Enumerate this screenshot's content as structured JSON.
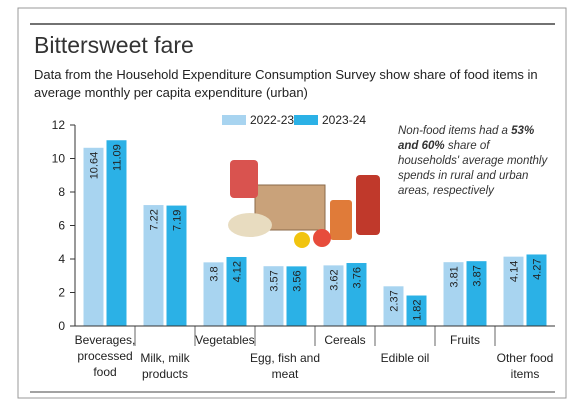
{
  "chart_data": {
    "type": "bar",
    "title": "Bittersweet fare",
    "subtitle": "Data from the Household Expenditure Consumption Survey show share of food items in average monthly per capita expenditure (urban)",
    "annotation": [
      "Non-food items had a ",
      "53% and 60%",
      " share of households' average monthly spends in rural and urban areas, respectively"
    ],
    "categories": [
      "Beverages, processed food",
      "Milk, milk products",
      "Vegetables",
      "Egg, fish and meat",
      "Cereals",
      "Edible oil",
      "Fruits",
      "Other food items"
    ],
    "series": [
      {
        "name": "2022-23",
        "color": "#a8d4f0",
        "values": [
          10.64,
          7.22,
          3.8,
          3.57,
          3.62,
          2.37,
          3.81,
          4.14
        ]
      },
      {
        "name": "2023-24",
        "color": "#2bb1e6",
        "values": [
          11.09,
          7.19,
          4.12,
          3.56,
          3.76,
          1.82,
          3.87,
          4.27
        ]
      }
    ],
    "ylim": [
      0,
      12
    ],
    "yticks": [
      0,
      2,
      4,
      6,
      8,
      10,
      12
    ],
    "grid": false
  }
}
